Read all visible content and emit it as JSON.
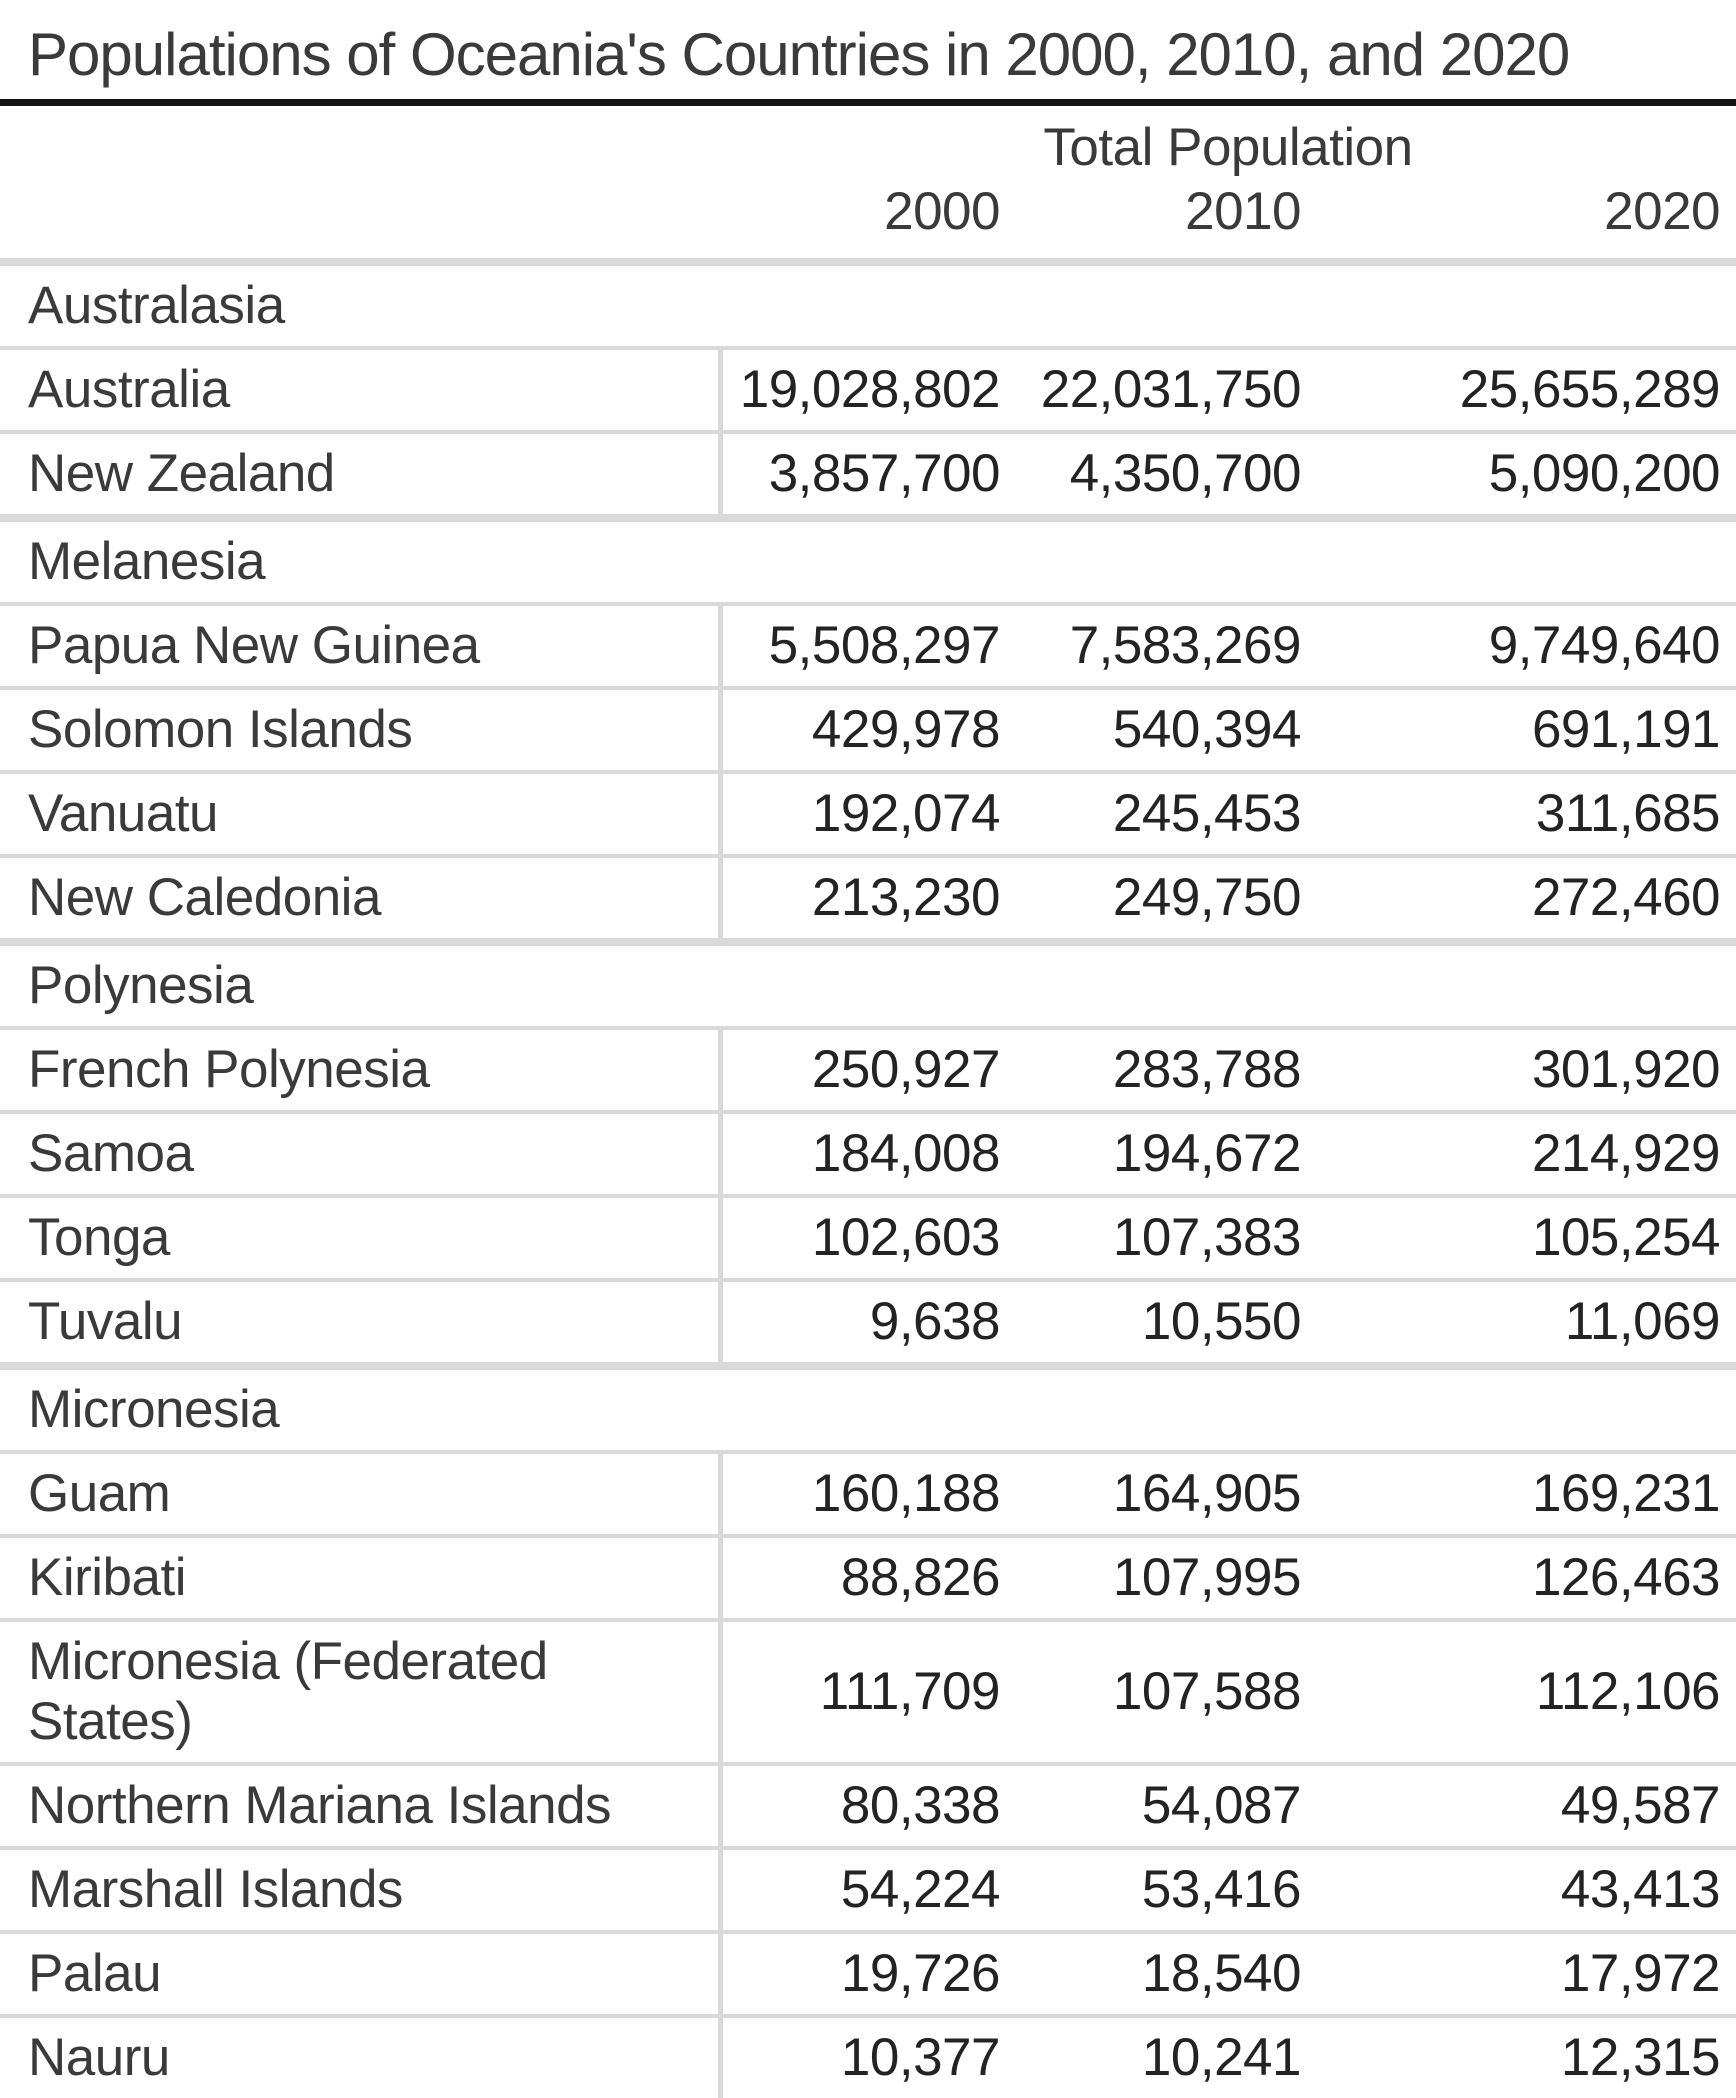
{
  "title": "Populations of Oceania's Countries in 2000, 2010, and 2020",
  "colors": {
    "rule": "#141414",
    "separator": "#d9d9d9",
    "text": "#3a3a3a",
    "numtext": "#232323",
    "bg": "#ffffff"
  },
  "chart_data": {
    "type": "table",
    "title": "Populations of Oceania's Countries in 2000, 2010, and 2020",
    "group_header": "Total Population",
    "columns": [
      "2000",
      "2010",
      "2020"
    ],
    "sections": [
      {
        "name": "Australasia",
        "rows": [
          {
            "country": "Australia",
            "values": [
              19028802,
              22031750,
              25655289
            ]
          },
          {
            "country": "New Zealand",
            "values": [
              3857700,
              4350700,
              5090200
            ]
          }
        ]
      },
      {
        "name": "Melanesia",
        "rows": [
          {
            "country": "Papua New Guinea",
            "values": [
              5508297,
              7583269,
              9749640
            ]
          },
          {
            "country": "Solomon Islands",
            "values": [
              429978,
              540394,
              691191
            ]
          },
          {
            "country": "Vanuatu",
            "values": [
              192074,
              245453,
              311685
            ]
          },
          {
            "country": "New Caledonia",
            "values": [
              213230,
              249750,
              272460
            ]
          }
        ]
      },
      {
        "name": "Polynesia",
        "rows": [
          {
            "country": "French Polynesia",
            "values": [
              250927,
              283788,
              301920
            ]
          },
          {
            "country": "Samoa",
            "values": [
              184008,
              194672,
              214929
            ]
          },
          {
            "country": "Tonga",
            "values": [
              102603,
              107383,
              105254
            ]
          },
          {
            "country": "Tuvalu",
            "values": [
              9638,
              10550,
              11069
            ]
          }
        ]
      },
      {
        "name": "Micronesia",
        "rows": [
          {
            "country": "Guam",
            "values": [
              160188,
              164905,
              169231
            ]
          },
          {
            "country": "Kiribati",
            "values": [
              88826,
              107995,
              126463
            ]
          },
          {
            "country": "Micronesia (Federated States)",
            "values": [
              111709,
              107588,
              112106
            ]
          },
          {
            "country": "Northern Mariana Islands",
            "values": [
              80338,
              54087,
              49587
            ]
          },
          {
            "country": "Marshall Islands",
            "values": [
              54224,
              53416,
              43413
            ]
          },
          {
            "country": "Palau",
            "values": [
              19726,
              18540,
              17972
            ]
          },
          {
            "country": "Nauru",
            "values": [
              10377,
              10241,
              12315
            ]
          }
        ]
      }
    ]
  }
}
